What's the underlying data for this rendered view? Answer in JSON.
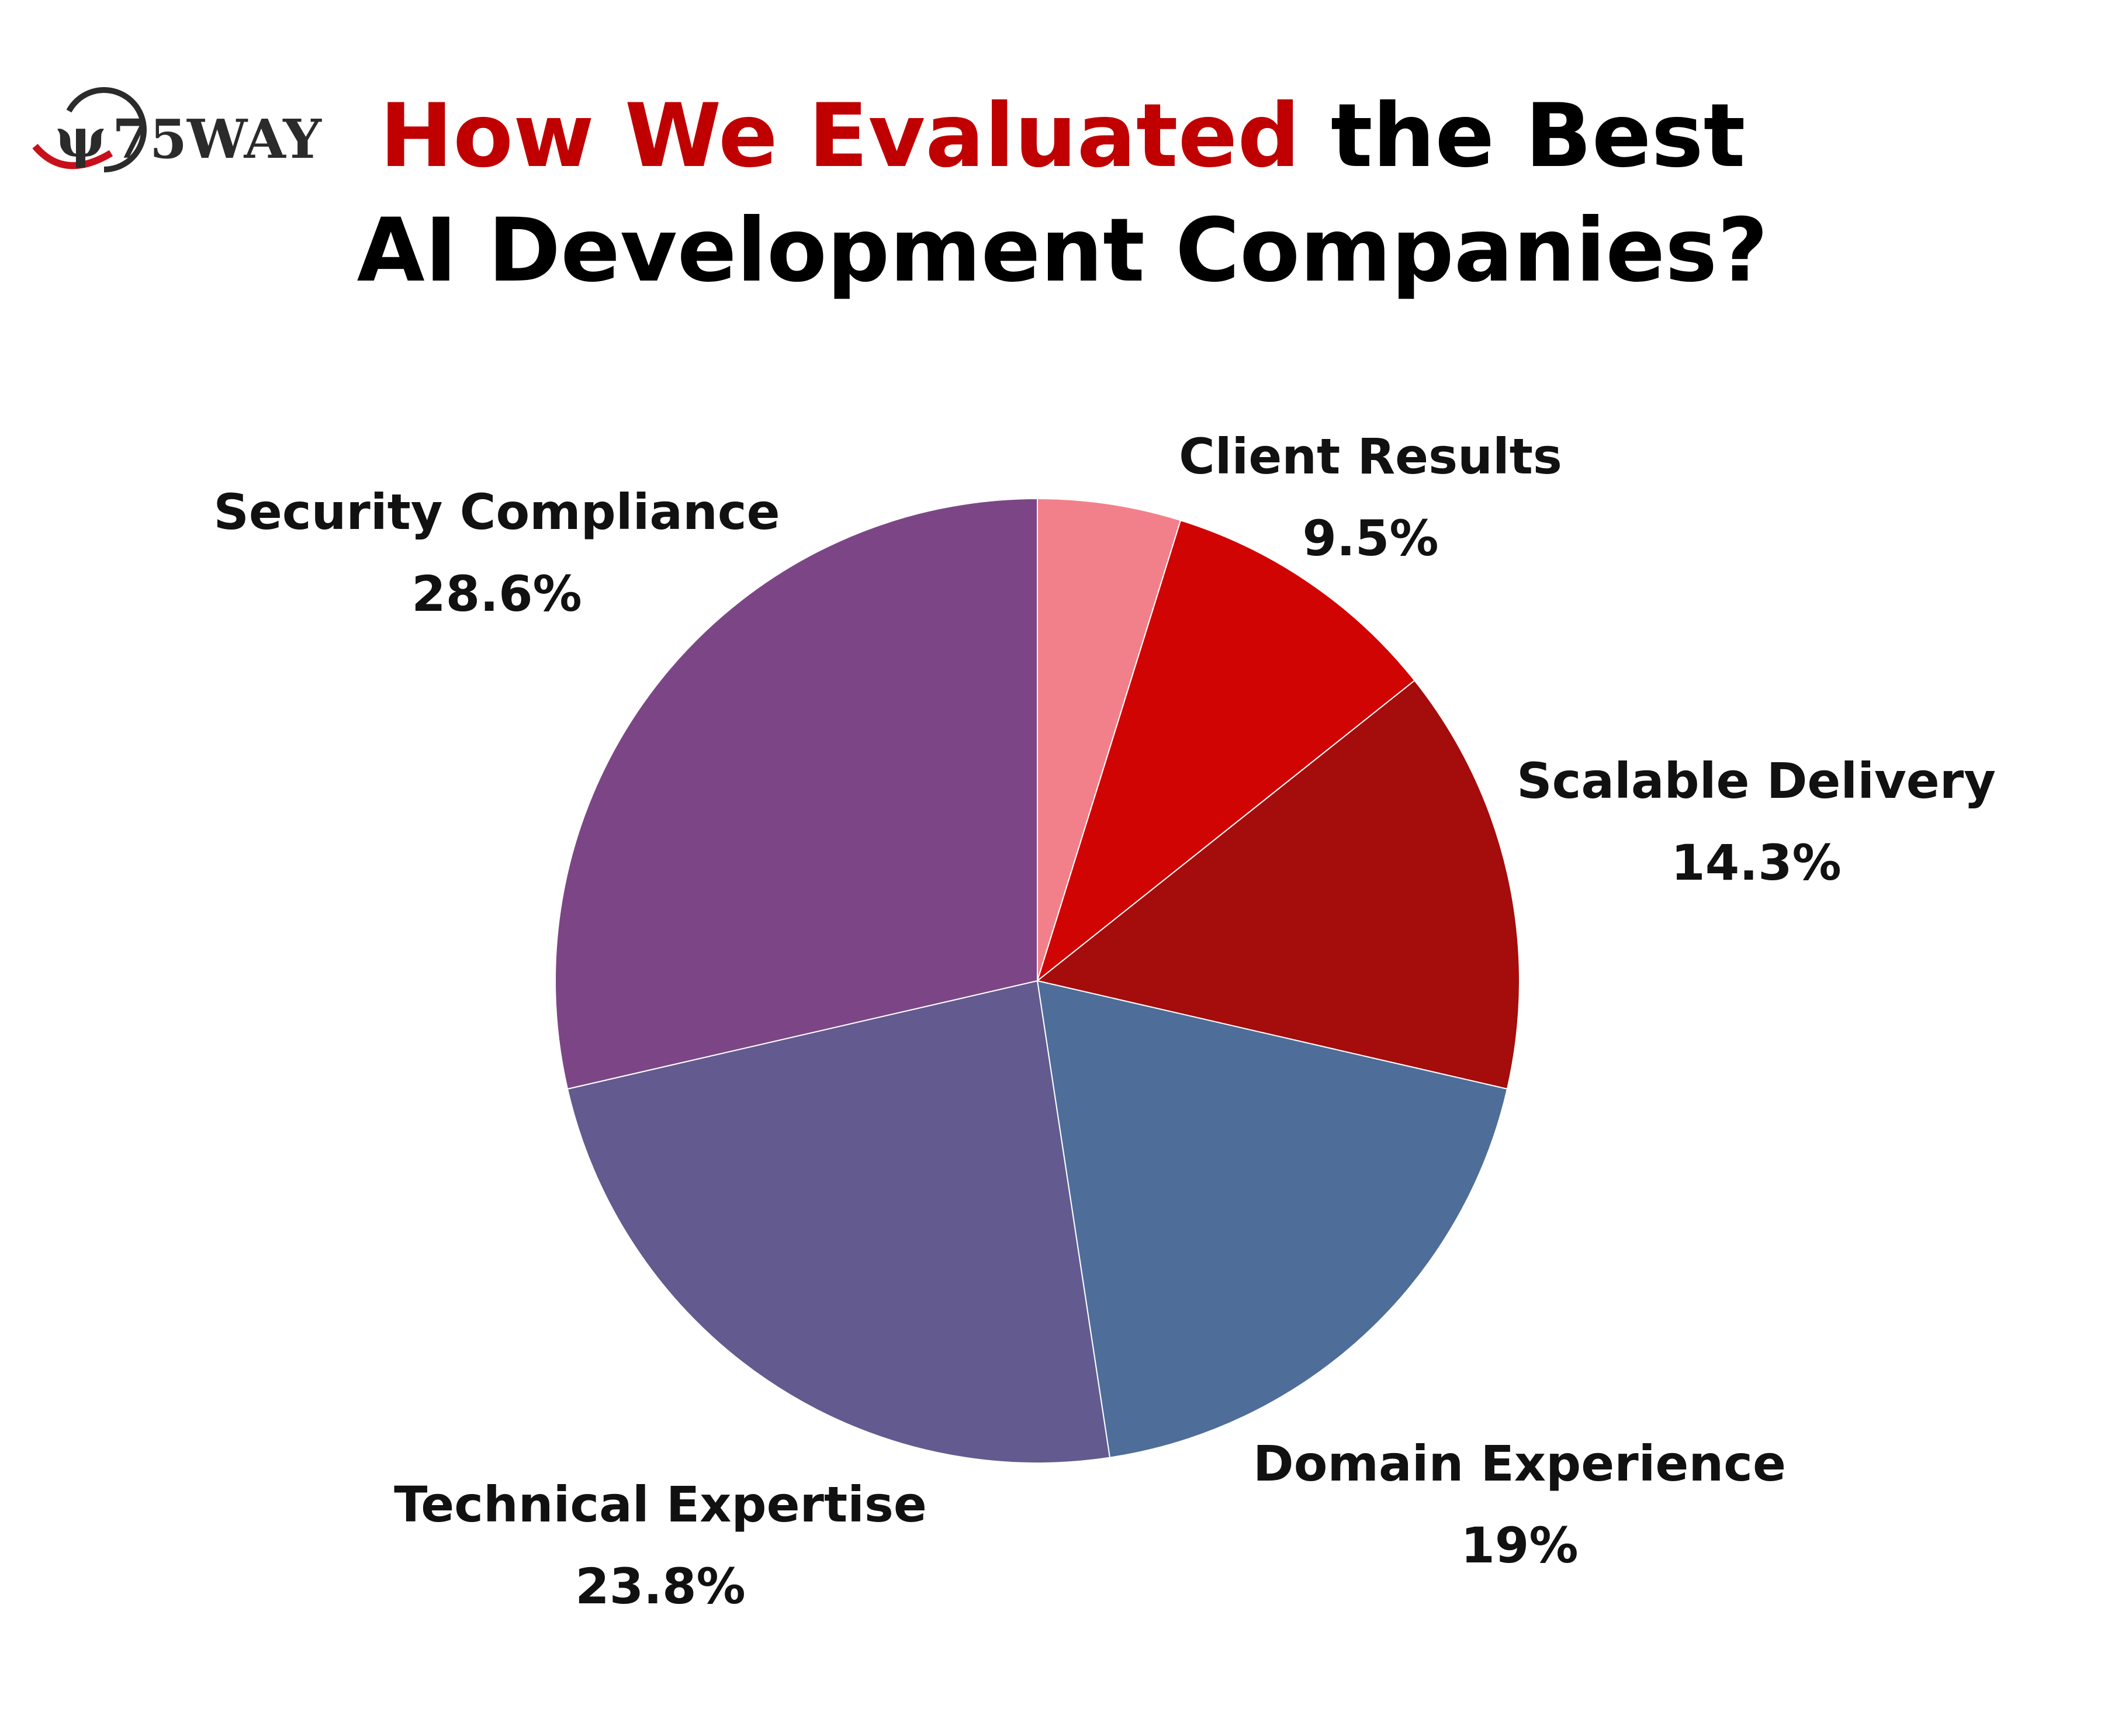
{
  "logo": {
    "text": "75WAY",
    "colors": {
      "mark": "#c8101a",
      "ring_dark": "#2b2b2b"
    }
  },
  "header": {
    "title_line1_highlight": "How We Evaluated",
    "title_line1_rest": " the Best",
    "title_line2": "AI Development Companies?",
    "highlight_color": "#c00000",
    "text_color": "#000000"
  },
  "chart_data": {
    "type": "pie",
    "start": "top",
    "direction": "clockwise",
    "slices": [
      {
        "value": 4.8,
        "color": "#f2808a",
        "label": "",
        "value_label": ""
      },
      {
        "value": 9.5,
        "color": "#d10404",
        "label": "Client Results",
        "value_label": "9.5%"
      },
      {
        "value": 14.3,
        "color": "#a50c0c",
        "label": "Scalable Delivery",
        "value_label": "14.3%"
      },
      {
        "value": 19,
        "color": "#4e6d99",
        "label": "Domain Experience",
        "value_label": "19%"
      },
      {
        "value": 23.8,
        "color": "#635a8f",
        "label": "Technical Expertise",
        "value_label": "23.8%"
      },
      {
        "value": 28.6,
        "color": "#7c4686",
        "label": "Security Compliance",
        "value_label": "28.6%"
      }
    ]
  }
}
